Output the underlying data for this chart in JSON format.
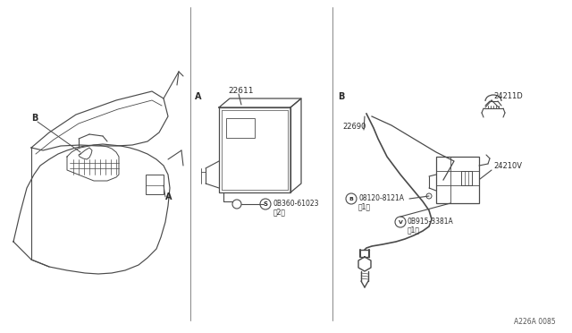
{
  "bg_color": "#ffffff",
  "line_color": "#4a4a4a",
  "text_color": "#2a2a2a",
  "footer_code": "A226A 0085",
  "part_22611": "22611",
  "part_22690": "22690",
  "part_24211D": "24211D",
  "part_24210V": "24210V",
  "bolt_S_num": "0B360-61023",
  "bolt_S_qty": "（2）",
  "bolt_B_num": "08120-8121A",
  "bolt_B_qty": "（1）",
  "nut_V_num": "0B915-3381A",
  "nut_V_qty": "（1）",
  "label_A": "A",
  "label_B": "B"
}
